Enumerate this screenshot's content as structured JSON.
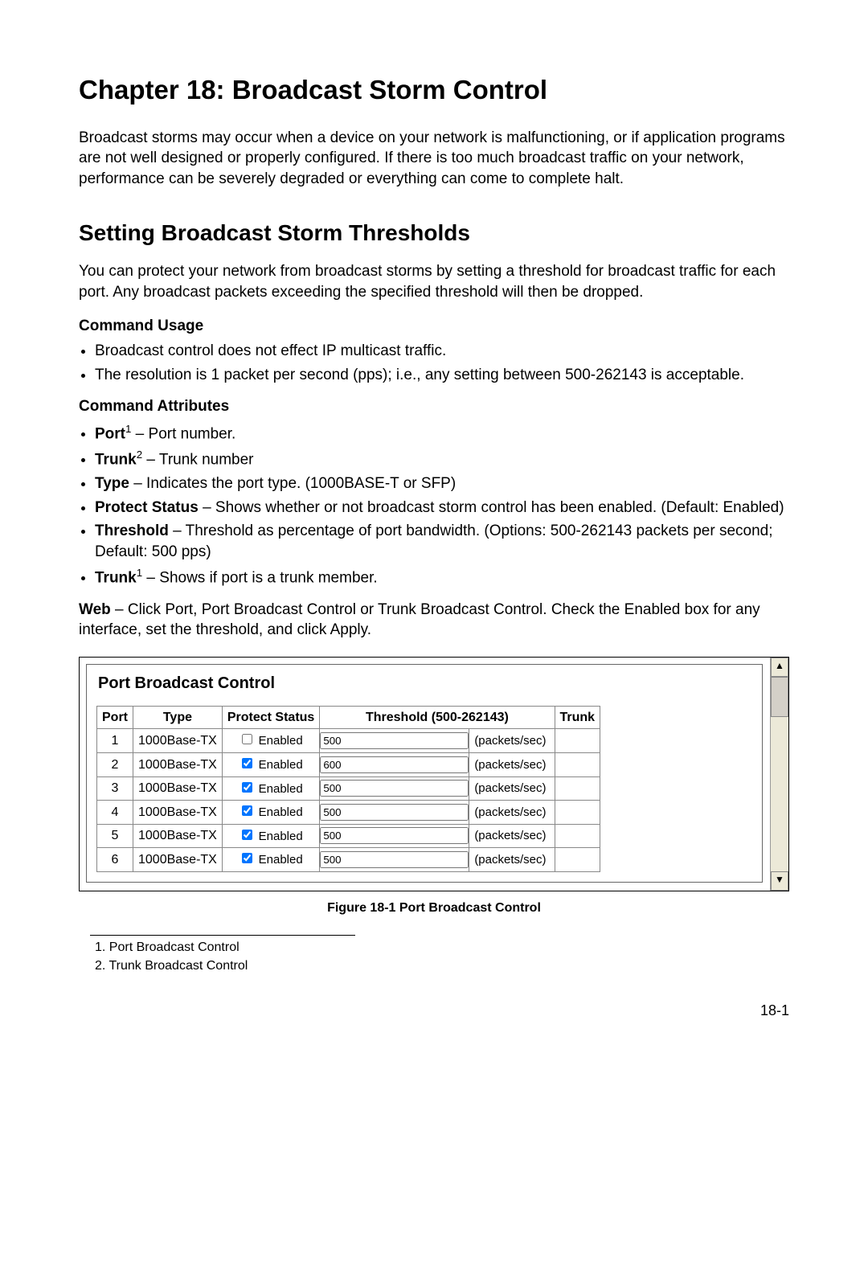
{
  "chapter_title": "Chapter 18: Broadcast Storm Control",
  "intro": "Broadcast storms may occur when a device on your network is malfunctioning, or if application programs are not well designed or properly configured. If there is too much broadcast traffic on your network, performance can be severely degraded or everything can come to complete halt.",
  "section_title": "Setting Broadcast Storm Thresholds",
  "section_intro": "You can protect your network from broadcast storms by setting a threshold for broadcast traffic for each port. Any broadcast packets exceeding the specified threshold will then be dropped.",
  "cmd_usage_head": "Command Usage",
  "cmd_usage": [
    "Broadcast control does not effect IP multicast traffic.",
    "The resolution is 1 packet per second (pps); i.e., any setting between 500-262143 is acceptable."
  ],
  "cmd_attr_head": "Command Attributes",
  "attrs": [
    {
      "term": "Port",
      "sup": "1",
      "desc": " – Port number."
    },
    {
      "term": "Trunk",
      "sup": "2",
      "desc": " – Trunk number"
    },
    {
      "term": "Type",
      "sup": "",
      "desc": " – Indicates the port type. (1000BASE-T or SFP)"
    },
    {
      "term": "Protect Status",
      "sup": "",
      "desc": " – Shows whether or not broadcast storm control has been enabled. (Default: Enabled)"
    },
    {
      "term": "Threshold",
      "sup": "",
      "desc": " – Threshold as percentage of port bandwidth. (Options: 500-262143 packets per second; Default: 500 pps)"
    },
    {
      "term": "Trunk",
      "sup": "1",
      "desc": " – Shows if port is a trunk member."
    }
  ],
  "web_lead": "Web",
  "web_text": " – Click Port, Port Broadcast Control or Trunk Broadcast Control. Check the Enabled box for any interface, set the threshold, and click Apply.",
  "panel_title": "Port Broadcast Control",
  "headers": {
    "port": "Port",
    "type": "Type",
    "protect": "Protect Status",
    "threshold": "Threshold (500-262143)",
    "trunk": "Trunk"
  },
  "enabled_label": "Enabled",
  "unit_label": "(packets/sec)",
  "rows": [
    {
      "port": "1",
      "type": "1000Base-TX",
      "checked": false,
      "threshold": "500",
      "trunk": ""
    },
    {
      "port": "2",
      "type": "1000Base-TX",
      "checked": true,
      "threshold": "600",
      "trunk": ""
    },
    {
      "port": "3",
      "type": "1000Base-TX",
      "checked": true,
      "threshold": "500",
      "trunk": ""
    },
    {
      "port": "4",
      "type": "1000Base-TX",
      "checked": true,
      "threshold": "500",
      "trunk": ""
    },
    {
      "port": "5",
      "type": "1000Base-TX",
      "checked": true,
      "threshold": "500",
      "trunk": ""
    },
    {
      "port": "6",
      "type": "1000Base-TX",
      "checked": true,
      "threshold": "500",
      "trunk": ""
    }
  ],
  "fig_caption": "Figure 18-1  Port Broadcast Control",
  "footnotes": [
    "1.  Port Broadcast Control",
    "2.  Trunk Broadcast Control"
  ],
  "page_number": "18-1"
}
